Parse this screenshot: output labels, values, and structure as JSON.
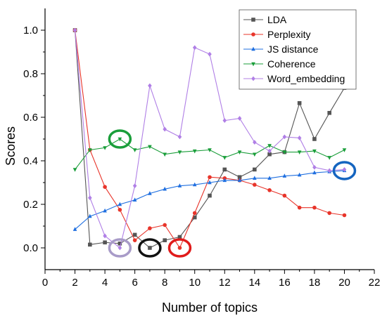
{
  "chart_data": {
    "type": "line",
    "title": "",
    "xlabel": "Number of topics",
    "ylabel": "Scores",
    "xlim": [
      0,
      22
    ],
    "ylim": [
      -0.1,
      1.1
    ],
    "xticks": [
      0,
      2,
      4,
      6,
      8,
      10,
      12,
      14,
      16,
      18,
      20,
      22
    ],
    "yticks": [
      0.0,
      0.2,
      0.4,
      0.6,
      0.8,
      1.0
    ],
    "xtick_labels": [
      "0",
      "2",
      "4",
      "6",
      "8",
      "10",
      "12",
      "14",
      "16",
      "18",
      "20",
      "22"
    ],
    "ytick_labels": [
      "0.0",
      "0.2",
      "0.4",
      "0.6",
      "0.8",
      "1.0"
    ],
    "grid": false,
    "legend_position": "top-right",
    "x": [
      2,
      3,
      4,
      5,
      6,
      7,
      8,
      9,
      10,
      11,
      12,
      13,
      14,
      15,
      16,
      17,
      18,
      19,
      20
    ],
    "series": [
      {
        "name": "LDA",
        "color": "#555555",
        "marker": "square",
        "values": [
          1.0,
          0.015,
          0.025,
          0.02,
          0.06,
          0.0,
          0.035,
          0.05,
          0.14,
          0.24,
          0.36,
          0.325,
          0.36,
          0.43,
          0.44,
          0.665,
          0.5,
          0.62,
          0.735
        ]
      },
      {
        "name": "Perplexity",
        "color": "#e8342a",
        "marker": "circle",
        "values": [
          1.0,
          0.45,
          0.28,
          0.175,
          0.035,
          0.09,
          0.105,
          0.0,
          0.16,
          0.325,
          0.32,
          0.31,
          0.29,
          0.265,
          0.24,
          0.185,
          0.185,
          0.16,
          0.15
        ]
      },
      {
        "name": "JS distance",
        "color": "#1f6fe0",
        "marker": "triangle-up",
        "values": [
          0.085,
          0.145,
          0.17,
          0.2,
          0.22,
          0.25,
          0.27,
          0.285,
          0.29,
          0.3,
          0.31,
          0.31,
          0.32,
          0.32,
          0.33,
          0.335,
          0.345,
          0.35,
          0.355
        ]
      },
      {
        "name": "Coherence",
        "color": "#1a9e3a",
        "marker": "triangle-down",
        "values": [
          0.36,
          0.45,
          0.46,
          0.5,
          0.45,
          0.465,
          0.43,
          0.44,
          0.445,
          0.45,
          0.415,
          0.44,
          0.43,
          0.47,
          0.44,
          0.44,
          0.445,
          0.415,
          0.45
        ]
      },
      {
        "name": "Word_embedding",
        "color": "#b07fe6",
        "marker": "diamond",
        "values": [
          1.0,
          0.23,
          0.055,
          0.0,
          0.285,
          0.745,
          0.545,
          0.51,
          0.92,
          0.89,
          0.585,
          0.595,
          0.485,
          0.445,
          0.51,
          0.505,
          0.37,
          0.355,
          0.36
        ]
      }
    ],
    "annotations": [
      {
        "type": "ellipse-highlight",
        "x": 5,
        "y": 0.0,
        "color": "#a89bc8",
        "target": "Word_embedding"
      },
      {
        "type": "ellipse-highlight",
        "x": 7,
        "y": 0.0,
        "color": "#111111",
        "target": "LDA"
      },
      {
        "type": "ellipse-highlight",
        "x": 9,
        "y": 0.0,
        "color": "#e01b1b",
        "target": "Perplexity"
      },
      {
        "type": "ellipse-highlight",
        "x": 5,
        "y": 0.5,
        "color": "#1a9e3a",
        "target": "Coherence"
      },
      {
        "type": "ellipse-highlight",
        "x": 20,
        "y": 0.355,
        "color": "#1565c0",
        "target": "JS distance"
      }
    ]
  }
}
